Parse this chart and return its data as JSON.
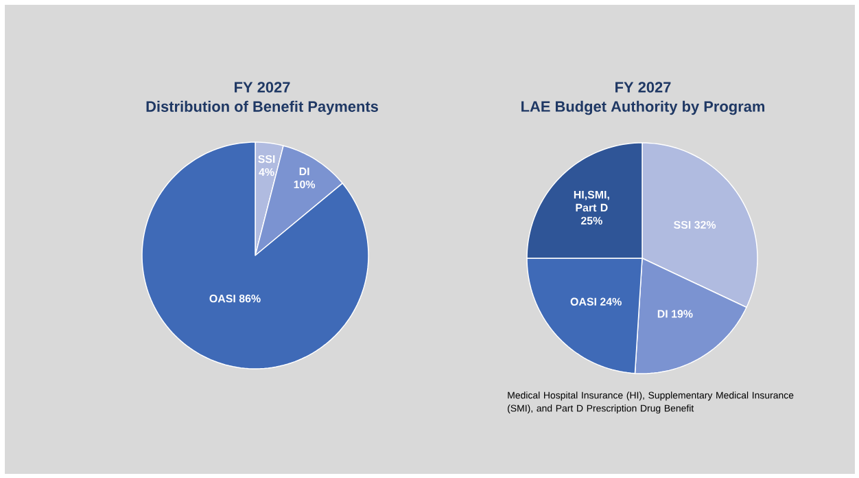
{
  "chart_data": [
    {
      "type": "pie",
      "title": "FY 2027",
      "subtitle": "Distribution of Benefit Payments",
      "categories": [
        "SSI",
        "DI",
        "OASI"
      ],
      "values": [
        4,
        10,
        86
      ],
      "value_labels": [
        "4%",
        "10%",
        "86%"
      ],
      "colors": [
        "#b0bbe0",
        "#7b93d1",
        "#3f6ab7"
      ]
    },
    {
      "type": "pie",
      "title": "FY 2027",
      "subtitle": "LAE Budget Authority by Program",
      "categories": [
        "SSI",
        "DI",
        "OASI",
        "HI,SMI, Part D"
      ],
      "values": [
        32,
        19,
        24,
        25
      ],
      "value_labels": [
        "32%",
        "19%",
        "24%",
        "25%"
      ],
      "colors": [
        "#b0bbe0",
        "#7b93d1",
        "#3f6ab7",
        "#2f5597"
      ],
      "annotations": [
        "Medical Hospital Insurance (HI), Supplementary Medical Insurance (SMI), and Part D Prescription Drug Benefit"
      ]
    }
  ]
}
